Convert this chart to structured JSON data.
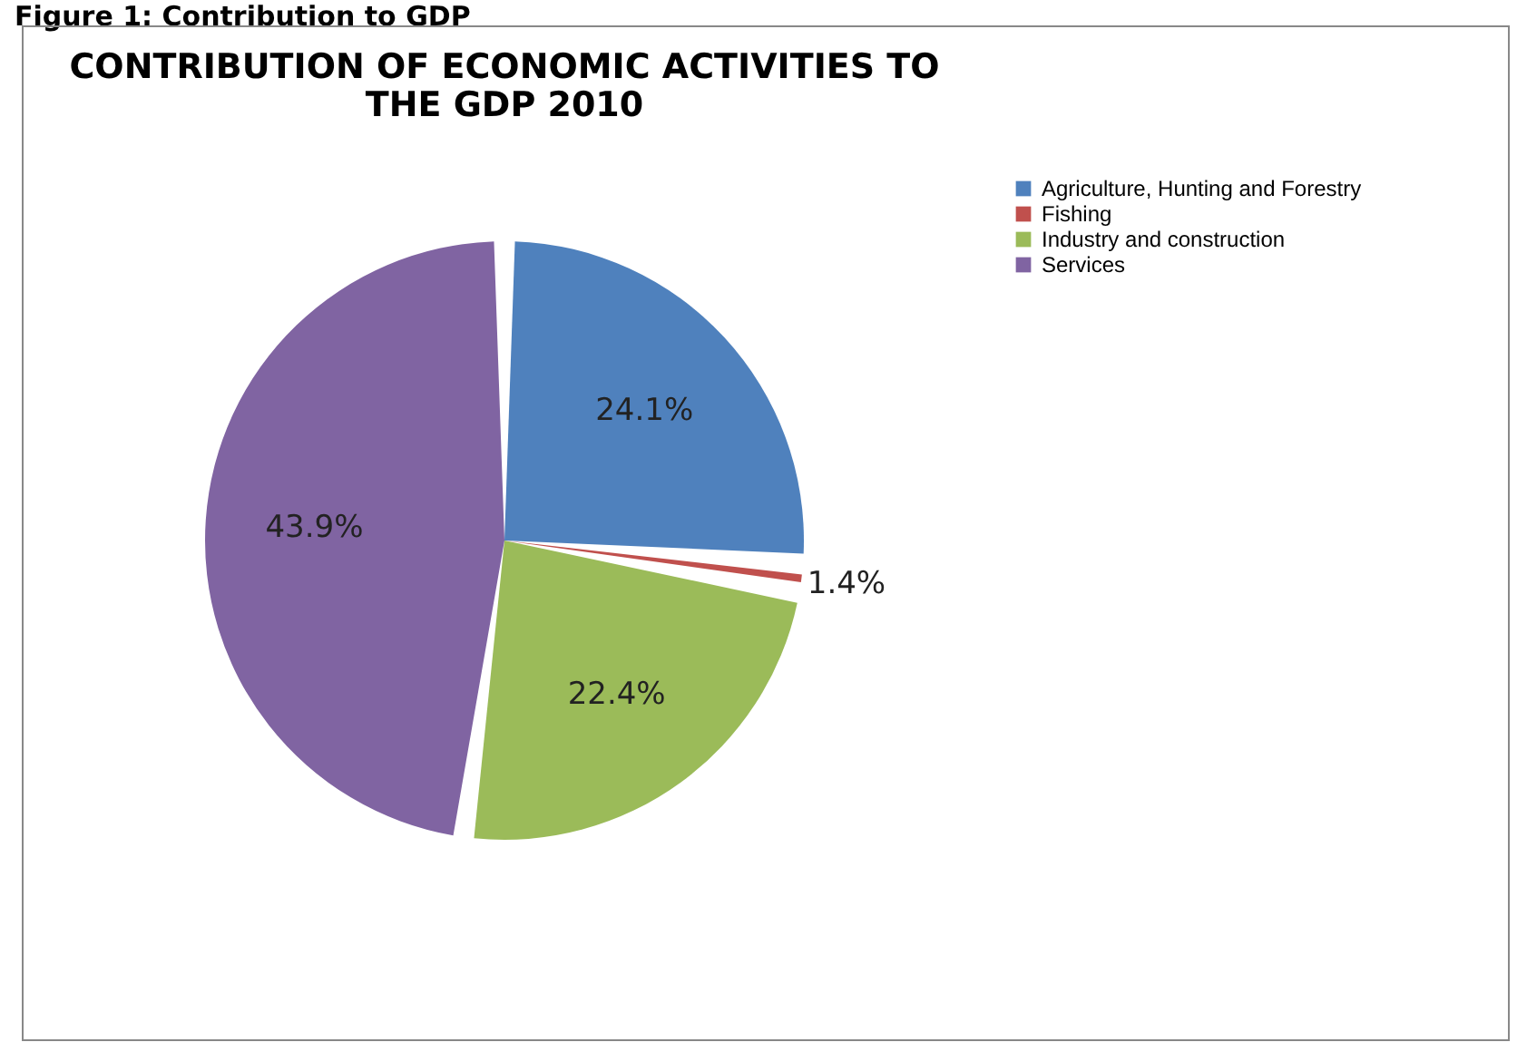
{
  "chart_data": {
    "type": "pie",
    "title": "CONTRIBUTION OF ECONOMIC ACTIVITIES TO THE GDP 2010",
    "categories": [
      "Agriculture, Hunting and Forestry",
      "Fishing",
      "Industry and construction",
      "Services"
    ],
    "values": [
      24.1,
      1.4,
      22.4,
      43.9
    ],
    "colors": [
      "#4f81bd",
      "#c0504d",
      "#9bbb59",
      "#8064a2"
    ],
    "value_labels": [
      "24.1%",
      "1.4%",
      "22.4%",
      "43.9%"
    ],
    "legend": "right",
    "annotations": [
      "Figure 1: Contribution to GDP"
    ]
  }
}
